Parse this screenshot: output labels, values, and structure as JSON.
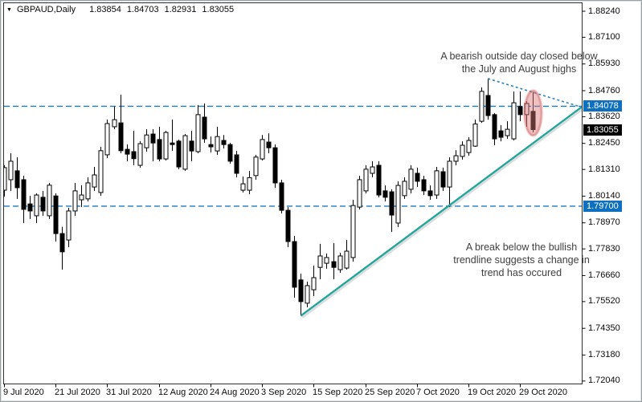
{
  "header": {
    "dropdown_icon": "▼",
    "symbol": "GBPAUD,Daily",
    "open": "1.83854",
    "high": "1.84703",
    "low": "1.82931",
    "close": "1.83055"
  },
  "annotations": [
    {
      "id": "bearish-outside-day-note",
      "lines": [
        "A bearish outside day closed below",
        "the July and August highs"
      ]
    },
    {
      "id": "trendline-break-note",
      "lines": [
        "A break below the bullish",
        "trendline suggests a change in",
        "trend has occured"
      ]
    }
  ],
  "price_axis": {
    "labels": [
      "1.88240",
      "1.87100",
      "1.85930",
      "1.84760",
      "1.83620",
      "1.82450",
      "1.81310",
      "1.80140",
      "1.78970",
      "1.77830",
      "1.76660",
      "1.75520",
      "1.74350",
      "1.73180",
      "1.72040"
    ],
    "highlighted": [
      {
        "value": "1.84078",
        "type": "level"
      },
      {
        "value": "1.83055",
        "type": "current"
      },
      {
        "value": "1.79700",
        "type": "level"
      }
    ]
  },
  "date_axis": {
    "labels": [
      "9 Jul 2020",
      "21 Jul 2020",
      "31 Jul 2020",
      "12 Aug 2020",
      "24 Aug 2020",
      "3 Sep 2020",
      "15 Sep 2020",
      "25 Sep 2020",
      "7 Oct 2020",
      "19 Oct 2020",
      "29 Oct 2020"
    ],
    "tick_indices": [
      0,
      8,
      16,
      24,
      32,
      40,
      48,
      56,
      64,
      72,
      80
    ]
  },
  "levels": [
    {
      "price": 1.84078,
      "label": "1.84078"
    },
    {
      "price": 1.797,
      "label": "1.79700"
    }
  ],
  "current_price": {
    "price": 1.83055,
    "label": "1.83055"
  },
  "objects": {
    "trendline_up": {
      "start": {
        "index": 46,
        "price": 1.749
      },
      "end": {
        "index": 89.5,
        "price": 1.8404
      }
    },
    "trendline_down": {
      "start": {
        "index": 75,
        "price": 1.8529
      },
      "end": {
        "index": 89.5,
        "price": 1.8404
      }
    },
    "ellipse": {
      "center_index": 82,
      "center_price": 1.8378,
      "rx_index": 1.31,
      "ry_price": 0.0098
    }
  },
  "colors": {
    "bull": "#ffffff",
    "bear": "#000000",
    "outline": "#000000",
    "frame": "#2f2f2f",
    "level_line": "#1b7ac8",
    "level_label_bg": "#1070c0",
    "current_label_bg": "#000000",
    "trendline": "#1ea59a",
    "trendline_shadow": "rgba(150,158,158,0.35)",
    "trendline_dashed": "#2c86b8",
    "ellipse_fill": "rgba(219,119,119,0.45)",
    "ellipse_stroke": "rgba(206,97,97,0.6)",
    "annotation_text": "#3f3f3f"
  },
  "chart_data": {
    "type": "candlestick",
    "symbol": "GBPAUD",
    "timeframe": "Daily",
    "title": "GBPAUD,Daily",
    "quote": {
      "open": 1.83854,
      "high": 1.84703,
      "low": 1.82931,
      "close": 1.83055
    },
    "ylim": [
      1.7193,
      1.8859
    ],
    "grid": false,
    "x_tick_labels": [
      "9 Jul 2020",
      "21 Jul 2020",
      "31 Jul 2020",
      "12 Aug 2020",
      "24 Aug 2020",
      "3 Sep 2020",
      "15 Sep 2020",
      "25 Sep 2020",
      "7 Oct 2020",
      "19 Oct 2020",
      "29 Oct 2020"
    ],
    "levels": [
      1.84078,
      1.797
    ],
    "dates": [
      "2020-07-09",
      "2020-07-10",
      "2020-07-13",
      "2020-07-14",
      "2020-07-15",
      "2020-07-16",
      "2020-07-17",
      "2020-07-20",
      "2020-07-21",
      "2020-07-22",
      "2020-07-23",
      "2020-07-24",
      "2020-07-27",
      "2020-07-28",
      "2020-07-29",
      "2020-07-30",
      "2020-07-31",
      "2020-08-03",
      "2020-08-04",
      "2020-08-05",
      "2020-08-06",
      "2020-08-07",
      "2020-08-10",
      "2020-08-11",
      "2020-08-12",
      "2020-08-13",
      "2020-08-14",
      "2020-08-17",
      "2020-08-18",
      "2020-08-19",
      "2020-08-20",
      "2020-08-21",
      "2020-08-24",
      "2020-08-25",
      "2020-08-26",
      "2020-08-27",
      "2020-08-28",
      "2020-08-31",
      "2020-09-01",
      "2020-09-02",
      "2020-09-03",
      "2020-09-04",
      "2020-09-07",
      "2020-09-08",
      "2020-09-09",
      "2020-09-10",
      "2020-09-11",
      "2020-09-14",
      "2020-09-15",
      "2020-09-16",
      "2020-09-17",
      "2020-09-18",
      "2020-09-21",
      "2020-09-22",
      "2020-09-23",
      "2020-09-24",
      "2020-09-25",
      "2020-09-28",
      "2020-09-29",
      "2020-09-30",
      "2020-10-01",
      "2020-10-02",
      "2020-10-05",
      "2020-10-06",
      "2020-10-07",
      "2020-10-08",
      "2020-10-09",
      "2020-10-12",
      "2020-10-13",
      "2020-10-14",
      "2020-10-15",
      "2020-10-16",
      "2020-10-19",
      "2020-10-20",
      "2020-10-21",
      "2020-10-22",
      "2020-10-23",
      "2020-10-26",
      "2020-10-27",
      "2020-10-28",
      "2020-10-29",
      "2020-10-30",
      "2020-11-02"
    ],
    "ohlc": [
      [
        1.804,
        1.815,
        1.8012,
        1.8139
      ],
      [
        1.8086,
        1.8202,
        1.8037,
        1.8167
      ],
      [
        1.8125,
        1.8184,
        1.8002,
        1.8051
      ],
      [
        1.8086,
        1.8103,
        1.7896,
        1.7956
      ],
      [
        1.798,
        1.8015,
        1.7914,
        1.7949
      ],
      [
        1.7928,
        1.8026,
        1.7896,
        1.8019
      ],
      [
        1.8009,
        1.8037,
        1.7928,
        1.7949
      ],
      [
        1.7928,
        1.8072,
        1.7914,
        1.8062
      ],
      [
        1.8015,
        1.8026,
        1.7815,
        1.785
      ],
      [
        1.785,
        1.788,
        1.7692,
        1.777
      ],
      [
        1.7822,
        1.7963,
        1.779,
        1.7949
      ],
      [
        1.7949,
        1.8072,
        1.7928,
        1.8037
      ],
      [
        1.7998,
        1.8062,
        1.7966,
        1.8019
      ],
      [
        1.8002,
        1.8097,
        1.7991,
        1.8072
      ],
      [
        1.8054,
        1.8142,
        1.8037,
        1.8107
      ],
      [
        1.803,
        1.823,
        1.8015,
        1.8213
      ],
      [
        1.8195,
        1.8349,
        1.8181,
        1.8332
      ],
      [
        1.8318,
        1.8407,
        1.8307,
        1.8349
      ],
      [
        1.8335,
        1.8458,
        1.8202,
        1.8213
      ],
      [
        1.8219,
        1.8241,
        1.8167,
        1.8198
      ],
      [
        1.8209,
        1.83,
        1.815,
        1.8178
      ],
      [
        1.8149,
        1.8255,
        1.8139,
        1.8244
      ],
      [
        1.8226,
        1.8307,
        1.8209,
        1.8282
      ],
      [
        1.8286,
        1.8307,
        1.8167,
        1.8247
      ],
      [
        1.8262,
        1.8318,
        1.8167,
        1.8177
      ],
      [
        1.8177,
        1.83,
        1.817,
        1.8293
      ],
      [
        1.8247,
        1.8349,
        1.8212,
        1.824
      ],
      [
        1.8255,
        1.8262,
        1.8132,
        1.8142
      ],
      [
        1.8132,
        1.8286,
        1.8125,
        1.8279
      ],
      [
        1.8255,
        1.83,
        1.8167,
        1.8212
      ],
      [
        1.8209,
        1.8413,
        1.8202,
        1.8371
      ],
      [
        1.836,
        1.842,
        1.8247,
        1.8265
      ],
      [
        1.824,
        1.8275,
        1.8205,
        1.823
      ],
      [
        1.8212,
        1.8318,
        1.8195,
        1.8275
      ],
      [
        1.8258,
        1.8282,
        1.8223,
        1.824
      ],
      [
        1.824,
        1.8247,
        1.8156,
        1.8167
      ],
      [
        1.8195,
        1.8212,
        1.8096,
        1.8114
      ],
      [
        1.804,
        1.81,
        1.803,
        1.8068
      ],
      [
        1.804,
        1.8125,
        1.8023,
        1.8095
      ],
      [
        1.8104,
        1.8195,
        1.8086,
        1.8185
      ],
      [
        1.8177,
        1.8282,
        1.817,
        1.8262
      ],
      [
        1.8251,
        1.8289,
        1.8202,
        1.8226
      ],
      [
        1.8226,
        1.824,
        1.805,
        1.8072
      ],
      [
        1.8072,
        1.8086,
        1.7938,
        1.7952
      ],
      [
        1.7952,
        1.7966,
        1.779,
        1.7815
      ],
      [
        1.7815,
        1.784,
        1.7569,
        1.7615
      ],
      [
        1.7647,
        1.7675,
        1.749,
        1.7552
      ],
      [
        1.7545,
        1.764,
        1.7527,
        1.7622
      ],
      [
        1.7604,
        1.771,
        1.7576,
        1.7657
      ],
      [
        1.7702,
        1.7805,
        1.765,
        1.7752
      ],
      [
        1.772,
        1.7762,
        1.7696,
        1.7745
      ],
      [
        1.7727,
        1.7808,
        1.765,
        1.7702
      ],
      [
        1.7692,
        1.7766,
        1.7678,
        1.7752
      ],
      [
        1.7699,
        1.7822,
        1.7692,
        1.7773
      ],
      [
        1.7745,
        1.7998,
        1.7727,
        1.7973
      ],
      [
        1.7966,
        1.8103,
        1.7956,
        1.8086
      ],
      [
        1.8037,
        1.8149,
        1.8026,
        1.8132
      ],
      [
        1.8114,
        1.8167,
        1.8097,
        1.8142
      ],
      [
        1.8149,
        1.8167,
        1.8009,
        1.8019
      ],
      [
        1.8037,
        1.8061,
        1.7991,
        1.8009
      ],
      [
        1.8033,
        1.8044,
        1.7857,
        1.7931
      ],
      [
        1.7896,
        1.8079,
        1.7878,
        1.8061
      ],
      [
        1.8016,
        1.8097,
        1.8002,
        1.8079
      ],
      [
        1.8044,
        1.8149,
        1.8026,
        1.8132
      ],
      [
        1.8114,
        1.8139,
        1.8054,
        1.8079
      ],
      [
        1.8086,
        1.8103,
        1.8019,
        1.8037
      ],
      [
        1.8037,
        1.8061,
        1.7998,
        1.8016
      ],
      [
        1.8019,
        1.8142,
        1.8002,
        1.8125
      ],
      [
        1.8121,
        1.8139,
        1.8037,
        1.8054
      ],
      [
        1.8054,
        1.8184,
        1.7966,
        1.8167
      ],
      [
        1.8167,
        1.8215,
        1.8149,
        1.8191
      ],
      [
        1.8188,
        1.8254,
        1.8174,
        1.8237
      ],
      [
        1.8205,
        1.8272,
        1.8191,
        1.8258
      ],
      [
        1.8233,
        1.8349,
        1.823,
        1.833
      ],
      [
        1.8342,
        1.849,
        1.8335,
        1.8473
      ],
      [
        1.8455,
        1.8529,
        1.8349,
        1.8367
      ],
      [
        1.8371,
        1.8378,
        1.8237,
        1.8265
      ],
      [
        1.83,
        1.8325,
        1.8254,
        1.8272
      ],
      [
        1.8279,
        1.8342,
        1.8265,
        1.8307
      ],
      [
        1.8265,
        1.8473,
        1.8258,
        1.8423
      ],
      [
        1.8406,
        1.8473,
        1.8342,
        1.8371
      ],
      [
        1.8371,
        1.843,
        1.8318,
        1.842
      ],
      [
        1.83854,
        1.84703,
        1.82931,
        1.83055
      ]
    ]
  }
}
